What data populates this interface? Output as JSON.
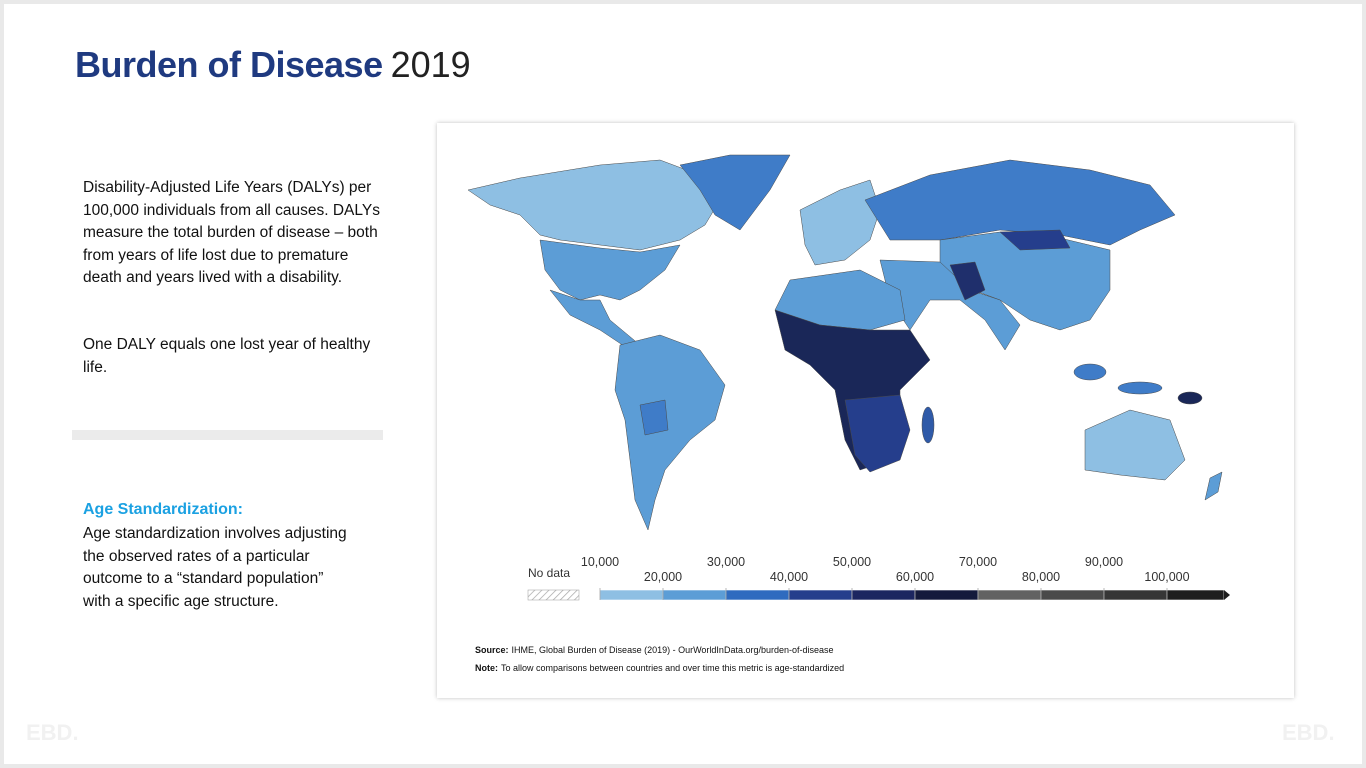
{
  "header": {
    "title": "Burden of Disease",
    "year": "2019"
  },
  "description": {
    "paragraphs": [
      "Disability-Adjusted Life Years (DALYs) per 100,000 individuals from all causes. DALYs measure the total burden of disease – both from years of life lost due to premature death and years lived with a disability.",
      "One DALY equals one lost year of healthy life."
    ]
  },
  "age_standardization": {
    "heading": "Age Standardization:",
    "text": "Age standardization involves adjusting the observed rates of a particular outcome to a “standard population” with a specific age structure."
  },
  "map": {
    "legend": {
      "no_data": "No data",
      "ticks": [
        {
          "value": 10000,
          "label": "10,000"
        },
        {
          "value": 20000,
          "label": "20,000"
        },
        {
          "value": 30000,
          "label": "30,000"
        },
        {
          "value": 40000,
          "label": "40,000"
        },
        {
          "value": 50000,
          "label": "50,000"
        },
        {
          "value": 60000,
          "label": "60,000"
        },
        {
          "value": 70000,
          "label": "70,000"
        },
        {
          "value": 80000,
          "label": "80,000"
        },
        {
          "value": 90000,
          "label": "90,000"
        },
        {
          "value": 100000,
          "label": "100,000"
        }
      ],
      "colors": [
        "#8ebfe3",
        "#5c9dd6",
        "#2f6bbf",
        "#253e8c",
        "#1c2660",
        "#141a3c",
        "#626262",
        "#4a4a4a",
        "#363636",
        "#1e1e1e"
      ]
    },
    "source_label": "Source:",
    "source": "IHME, Global Burden of Disease (2019) - OurWorldInData.org/burden-of-disease",
    "note_label": "Note:",
    "note": "To allow comparisons between countries and over time this metric is age-standardized"
  },
  "logo": "EBD."
}
